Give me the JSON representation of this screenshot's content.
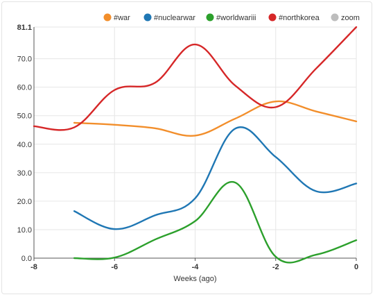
{
  "chart_data": {
    "type": "line",
    "xlabel": "Weeks (ago)",
    "ylabel": "",
    "xlim": [
      -8,
      0
    ],
    "ylim": [
      0,
      81.1
    ],
    "x_ticks": [
      "-8",
      "-6",
      "-4",
      "-2",
      "0"
    ],
    "y_ticks": [
      "0.0",
      "10.0",
      "20.0",
      "30.0",
      "40.0",
      "50.0",
      "60.0",
      "70.0",
      "81.1"
    ],
    "grid": true,
    "legend_position": "top-right",
    "series": [
      {
        "name": "#war",
        "color": "#f28e2b",
        "x": [
          -7,
          -6,
          -5,
          -4,
          -3,
          -2,
          -1,
          0
        ],
        "values": [
          47.5,
          46.8,
          45.6,
          43.0,
          49.0,
          55.0,
          51.5,
          48.0
        ]
      },
      {
        "name": "#nuclearwar",
        "color": "#1f77b4",
        "x": [
          -7,
          -6,
          -5,
          -4,
          -3,
          -2,
          -1,
          0
        ],
        "values": [
          16.5,
          10.2,
          15.0,
          21.0,
          45.5,
          35.5,
          23.5,
          26.2
        ]
      },
      {
        "name": "#worldwariii",
        "color": "#2ca02c",
        "x": [
          -7,
          -6,
          -5,
          -4,
          -3,
          -2,
          -1,
          0
        ],
        "values": [
          0.0,
          0.2,
          6.5,
          13.0,
          26.5,
          0.5,
          1.2,
          6.3
        ]
      },
      {
        "name": "#northkorea",
        "color": "#d62728",
        "x": [
          -8,
          -7,
          -6,
          -5,
          -4,
          -3,
          -2,
          -1,
          0
        ],
        "values": [
          46.3,
          45.9,
          59.0,
          61.5,
          75.0,
          60.5,
          53.0,
          66.5,
          81.1
        ]
      }
    ],
    "extra_legend": {
      "name": "zoom",
      "color": "#bdbdbd"
    }
  }
}
